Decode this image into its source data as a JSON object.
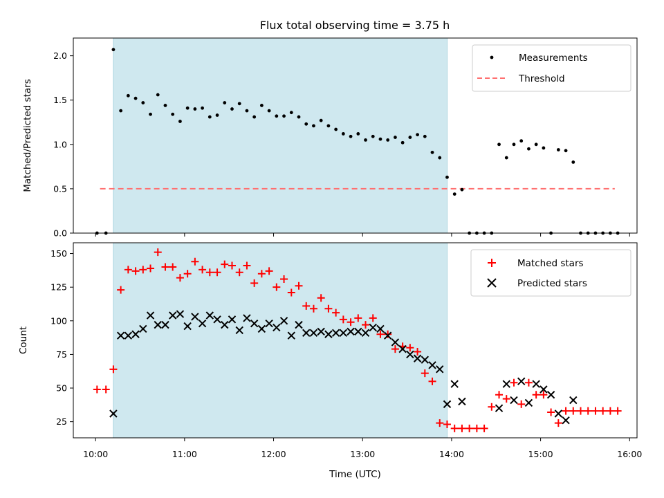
{
  "title": "Flux total observing time = 3.75 h",
  "colors": {
    "shade": "#cfe8ef",
    "threshold": "#ff7070",
    "matched": "#ff0000",
    "predicted": "#000000",
    "measure": "#000000"
  },
  "chart_data": [
    {
      "type": "scatter",
      "ylabel": "Matched/Predicted stars",
      "ylim": [
        0,
        2.2
      ],
      "xlim": [
        "09:45",
        "16:05"
      ],
      "yticks": [
        "0.0",
        "0.5",
        "1.0",
        "1.5",
        "2.0"
      ],
      "ytick_values": [
        0,
        0.5,
        1.0,
        1.5,
        2.0
      ],
      "shaded_span": [
        "10:12",
        "13:57"
      ],
      "legend_position": "top-right",
      "legend": [
        "Measurements",
        "Threshold"
      ],
      "threshold": {
        "value": 0.5,
        "x": [
          "10:03",
          "15:50"
        ]
      },
      "series": [
        {
          "name": "Measurements",
          "x": [
            "10:01",
            "10:07",
            "10:12",
            "10:17",
            "10:22",
            "10:27",
            "10:32",
            "10:37",
            "10:42",
            "10:47",
            "10:52",
            "10:57",
            "11:02",
            "11:07",
            "11:12",
            "11:17",
            "11:22",
            "11:27",
            "11:32",
            "11:37",
            "11:42",
            "11:47",
            "11:52",
            "11:57",
            "12:02",
            "12:07",
            "12:12",
            "12:17",
            "12:22",
            "12:27",
            "12:32",
            "12:37",
            "12:42",
            "12:47",
            "12:52",
            "12:57",
            "13:02",
            "13:07",
            "13:12",
            "13:17",
            "13:22",
            "13:27",
            "13:32",
            "13:37",
            "13:42",
            "13:47",
            "13:52",
            "13:57",
            "14:02",
            "14:07",
            "14:12",
            "14:17",
            "14:22",
            "14:27",
            "14:32",
            "14:37",
            "14:42",
            "14:47",
            "14:52",
            "14:57",
            "15:02",
            "15:07",
            "15:12",
            "15:17",
            "15:22",
            "15:27",
            "15:32",
            "15:37",
            "15:42",
            "15:47",
            "15:52"
          ],
          "y": [
            0,
            0,
            2.07,
            1.38,
            1.55,
            1.52,
            1.47,
            1.34,
            1.56,
            1.44,
            1.34,
            1.26,
            1.41,
            1.4,
            1.41,
            1.31,
            1.33,
            1.47,
            1.4,
            1.46,
            1.38,
            1.31,
            1.44,
            1.38,
            1.32,
            1.32,
            1.36,
            1.31,
            1.23,
            1.21,
            1.27,
            1.21,
            1.17,
            1.12,
            1.09,
            1.12,
            1.05,
            1.09,
            1.06,
            1.05,
            1.08,
            1.02,
            1.08,
            1.11,
            1.09,
            0.91,
            0.85,
            0.63,
            0.44,
            0.49,
            0,
            0,
            0,
            0,
            1.0,
            0.85,
            1.0,
            1.04,
            0.95,
            1.0,
            0.96,
            0,
            0.94,
            0.93,
            0.8,
            0,
            0,
            0,
            0,
            0,
            0
          ]
        }
      ]
    },
    {
      "type": "scatter",
      "xlabel": "Time (UTC)",
      "ylabel": "Count",
      "ylim": [
        13,
        158
      ],
      "xlim": [
        "09:45",
        "16:05"
      ],
      "xticks": [
        "10:00",
        "11:00",
        "12:00",
        "13:00",
        "14:00",
        "15:00",
        "16:00"
      ],
      "yticks": [
        "25",
        "50",
        "75",
        "100",
        "125",
        "150"
      ],
      "ytick_values": [
        25,
        50,
        75,
        100,
        125,
        150
      ],
      "shaded_span": [
        "10:12",
        "13:57"
      ],
      "legend_position": "top-right",
      "legend": [
        "Matched stars",
        "Predicted stars"
      ],
      "series": [
        {
          "name": "Matched stars",
          "x": [
            "10:01",
            "10:07",
            "10:12",
            "10:17",
            "10:22",
            "10:27",
            "10:32",
            "10:37",
            "10:42",
            "10:47",
            "10:52",
            "10:57",
            "11:02",
            "11:07",
            "11:12",
            "11:17",
            "11:22",
            "11:27",
            "11:32",
            "11:37",
            "11:42",
            "11:47",
            "11:52",
            "11:57",
            "12:02",
            "12:07",
            "12:12",
            "12:17",
            "12:22",
            "12:27",
            "12:32",
            "12:37",
            "12:42",
            "12:47",
            "12:52",
            "12:57",
            "13:02",
            "13:07",
            "13:12",
            "13:17",
            "13:22",
            "13:27",
            "13:32",
            "13:37",
            "13:42",
            "13:47",
            "13:52",
            "13:57",
            "14:02",
            "14:07",
            "14:12",
            "14:17",
            "14:22",
            "14:27",
            "14:32",
            "14:37",
            "14:42",
            "14:47",
            "14:52",
            "14:57",
            "15:02",
            "15:07",
            "15:12",
            "15:17",
            "15:22",
            "15:27",
            "15:32",
            "15:37",
            "15:42",
            "15:47",
            "15:52"
          ],
          "y": [
            49,
            49,
            64,
            123,
            138,
            137,
            138,
            139,
            151,
            140,
            140,
            132,
            135,
            144,
            138,
            136,
            136,
            142,
            141,
            136,
            141,
            128,
            135,
            137,
            125,
            131,
            121,
            126,
            111,
            109,
            117,
            109,
            106,
            101,
            99,
            102,
            97,
            102,
            90,
            90,
            79,
            81,
            80,
            77,
            61,
            55,
            24,
            23,
            20,
            20,
            20,
            20,
            20,
            36,
            45,
            42,
            54,
            38,
            54,
            45,
            45,
            32,
            24,
            33,
            33,
            33,
            33,
            33,
            33,
            33,
            33
          ]
        },
        {
          "name": "Predicted stars",
          "x": [
            "10:12",
            "10:17",
            "10:22",
            "10:27",
            "10:32",
            "10:37",
            "10:42",
            "10:47",
            "10:52",
            "10:57",
            "11:02",
            "11:07",
            "11:12",
            "11:17",
            "11:22",
            "11:27",
            "11:32",
            "11:37",
            "11:42",
            "11:47",
            "11:52",
            "11:57",
            "12:02",
            "12:07",
            "12:12",
            "12:17",
            "12:22",
            "12:27",
            "12:32",
            "12:37",
            "12:42",
            "12:47",
            "12:52",
            "12:57",
            "13:02",
            "13:07",
            "13:12",
            "13:17",
            "13:22",
            "13:27",
            "13:32",
            "13:37",
            "13:42",
            "13:47",
            "13:52",
            "13:57",
            "14:02",
            "14:07",
            "14:32",
            "14:37",
            "14:42",
            "14:47",
            "14:52",
            "14:57",
            "15:02",
            "15:07",
            "15:12",
            "15:17",
            "15:22"
          ],
          "y": [
            31,
            89,
            89,
            90,
            94,
            104,
            97,
            97,
            104,
            105,
            96,
            103,
            98,
            104,
            101,
            97,
            101,
            93,
            102,
            98,
            94,
            98,
            95,
            100,
            89,
            97,
            91,
            91,
            92,
            90,
            91,
            91,
            92,
            92,
            91,
            95,
            94,
            89,
            84,
            79,
            75,
            72,
            71,
            67,
            64,
            38,
            53,
            40,
            35,
            53,
            41,
            55,
            39,
            53,
            49,
            45,
            31,
            26,
            41
          ]
        }
      ]
    }
  ]
}
